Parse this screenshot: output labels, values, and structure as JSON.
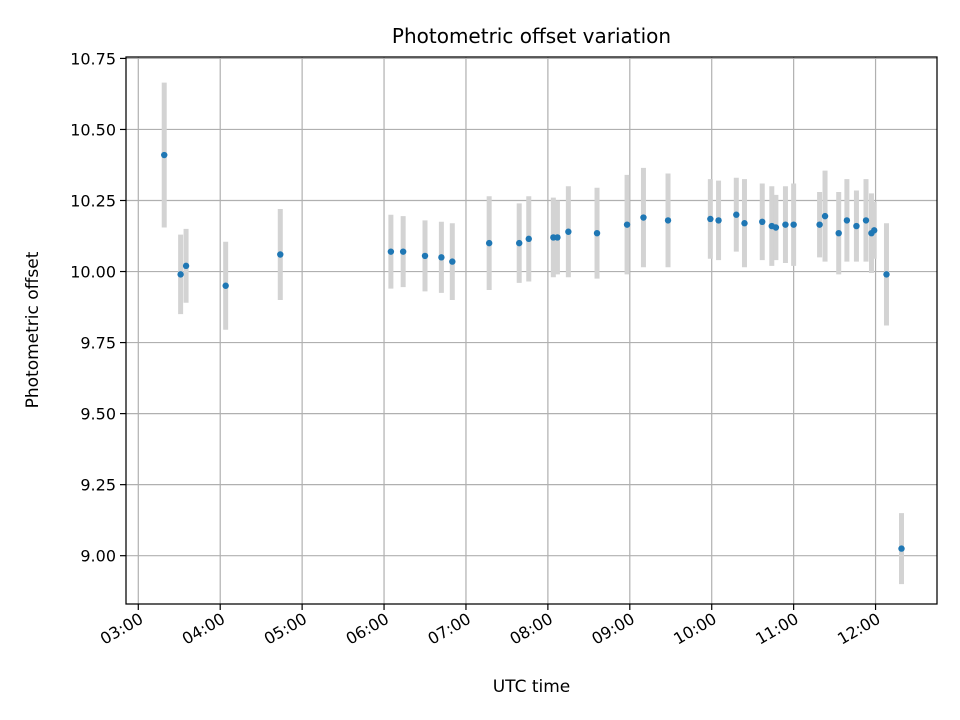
{
  "chart_data": {
    "type": "scatter",
    "title": "Photometric offset variation",
    "xlabel": "UTC time",
    "ylabel": "Photometric offset",
    "xlim": [
      "02:51",
      "12:45"
    ],
    "ylim": [
      8.83,
      10.755
    ],
    "grid": true,
    "x_ticks": [
      "03:00",
      "04:00",
      "05:00",
      "06:00",
      "07:00",
      "08:00",
      "09:00",
      "10:00",
      "11:00",
      "12:00"
    ],
    "y_ticks": [
      "9.00",
      "9.25",
      "9.50",
      "9.75",
      "10.00",
      "10.25",
      "10.50",
      "10.75"
    ],
    "colors": {
      "point": "#1f77b4",
      "errorbar": "#d3d3d3",
      "grid": "#b0b0b0"
    },
    "series": [
      {
        "points": [
          {
            "x": "03:19",
            "y": 10.41,
            "err": 0.255
          },
          {
            "x": "03:31",
            "y": 9.99,
            "err": 0.14
          },
          {
            "x": "03:35",
            "y": 10.02,
            "err": 0.13
          },
          {
            "x": "04:04",
            "y": 9.95,
            "err": 0.155
          },
          {
            "x": "04:44",
            "y": 10.06,
            "err": 0.16
          },
          {
            "x": "06:05",
            "y": 10.07,
            "err": 0.13
          },
          {
            "x": "06:14",
            "y": 10.07,
            "err": 0.125
          },
          {
            "x": "06:30",
            "y": 10.055,
            "err": 0.125
          },
          {
            "x": "06:42",
            "y": 10.05,
            "err": 0.125
          },
          {
            "x": "06:50",
            "y": 10.035,
            "err": 0.135
          },
          {
            "x": "07:17",
            "y": 10.1,
            "err": 0.165
          },
          {
            "x": "07:39",
            "y": 10.1,
            "err": 0.14
          },
          {
            "x": "07:46",
            "y": 10.115,
            "err": 0.15
          },
          {
            "x": "08:04",
            "y": 10.12,
            "err": 0.14
          },
          {
            "x": "08:07",
            "y": 10.12,
            "err": 0.13
          },
          {
            "x": "08:15",
            "y": 10.14,
            "err": 0.16
          },
          {
            "x": "08:36",
            "y": 10.135,
            "err": 0.16
          },
          {
            "x": "08:58",
            "y": 10.165,
            "err": 0.175
          },
          {
            "x": "09:10",
            "y": 10.19,
            "err": 0.175
          },
          {
            "x": "09:28",
            "y": 10.18,
            "err": 0.165
          },
          {
            "x": "09:59",
            "y": 10.185,
            "err": 0.14
          },
          {
            "x": "10:05",
            "y": 10.18,
            "err": 0.14
          },
          {
            "x": "10:18",
            "y": 10.2,
            "err": 0.13
          },
          {
            "x": "10:24",
            "y": 10.17,
            "err": 0.155
          },
          {
            "x": "10:37",
            "y": 10.175,
            "err": 0.135
          },
          {
            "x": "10:44",
            "y": 10.16,
            "err": 0.14
          },
          {
            "x": "10:47",
            "y": 10.155,
            "err": 0.115
          },
          {
            "x": "10:54",
            "y": 10.165,
            "err": 0.135
          },
          {
            "x": "11:00",
            "y": 10.165,
            "err": 0.145
          },
          {
            "x": "11:19",
            "y": 10.165,
            "err": 0.115
          },
          {
            "x": "11:23",
            "y": 10.195,
            "err": 0.16
          },
          {
            "x": "11:33",
            "y": 10.135,
            "err": 0.145
          },
          {
            "x": "11:39",
            "y": 10.18,
            "err": 0.145
          },
          {
            "x": "11:46",
            "y": 10.16,
            "err": 0.125
          },
          {
            "x": "11:53",
            "y": 10.18,
            "err": 0.145
          },
          {
            "x": "11:57",
            "y": 10.135,
            "err": 0.14
          },
          {
            "x": "11:59",
            "y": 10.145,
            "err": 0.1
          },
          {
            "x": "12:08",
            "y": 9.99,
            "err": 0.18
          },
          {
            "x": "12:19",
            "y": 9.025,
            "err": 0.125
          }
        ]
      }
    ]
  }
}
